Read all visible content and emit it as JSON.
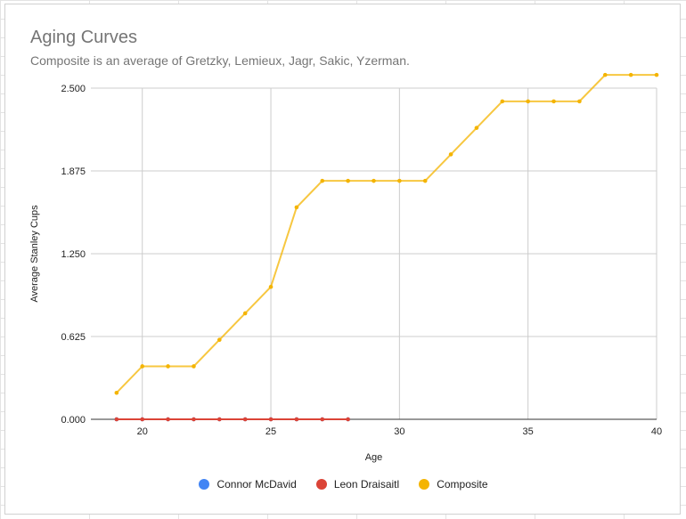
{
  "chart_data": {
    "type": "line",
    "title": "Aging Curves",
    "subtitle": "Composite is an average of Gretzky, Lemieux, Jagr, Sakic, Yzerman.",
    "xlabel": "Age",
    "ylabel": "Average Stanley Cups",
    "xlim": [
      18,
      40
    ],
    "ylim": [
      0,
      2.5
    ],
    "x_ticks": [
      20,
      25,
      30,
      35,
      40
    ],
    "y_ticks": [
      "0.000",
      "0.625",
      "1.250",
      "1.875",
      "2.500"
    ],
    "y_tick_values": [
      0,
      0.625,
      1.25,
      1.875,
      2.5
    ],
    "grid": true,
    "legend_position": "bottom",
    "series": [
      {
        "name": "Connor McDavid",
        "color": "#4285f4",
        "x": [
          19,
          20,
          21,
          22,
          23,
          24,
          25,
          26,
          27,
          28
        ],
        "y": [
          0,
          0,
          0,
          0,
          0,
          0,
          0,
          0,
          0,
          0
        ]
      },
      {
        "name": "Leon Draisaitl",
        "color": "#db4437",
        "x": [
          19,
          20,
          21,
          22,
          23,
          24,
          25,
          26,
          27,
          28
        ],
        "y": [
          0,
          0,
          0,
          0,
          0,
          0,
          0,
          0,
          0,
          0
        ]
      },
      {
        "name": "Composite",
        "color": "#f4b400",
        "x": [
          19,
          20,
          21,
          22,
          23,
          24,
          25,
          26,
          27,
          28,
          29,
          30,
          31,
          32,
          33,
          34,
          35,
          36,
          37,
          38,
          39,
          40
        ],
        "y": [
          0.2,
          0.4,
          0.4,
          0.4,
          0.6,
          0.8,
          1.0,
          1.6,
          1.8,
          1.8,
          1.8,
          1.8,
          1.8,
          2.0,
          2.2,
          2.4,
          2.4,
          2.4,
          2.4,
          2.6,
          2.6,
          2.6
        ]
      }
    ]
  }
}
